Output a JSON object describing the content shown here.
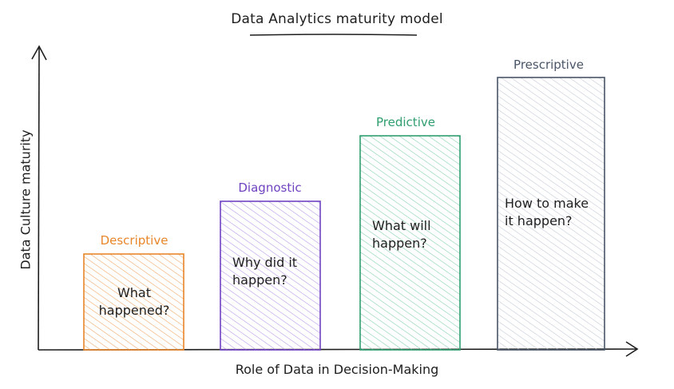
{
  "title": "Data Analytics maturity model",
  "x_axis_label": "Role of Data in Decision-Making",
  "y_axis_label": "Data Culture maturity",
  "stages": [
    {
      "name": "Descriptive",
      "question": "What\nhappened?",
      "color": "#e8862a",
      "fill": "#f6c08f",
      "level": 1
    },
    {
      "name": "Diagnostic",
      "question": "Why did it\nhappen?",
      "color": "#6f42c1",
      "fill": "#c9b3f0",
      "level": 2
    },
    {
      "name": "Predictive",
      "question": "What will\nhappen?",
      "color": "#2f9e6e",
      "fill": "#9fdcbf",
      "level": 3
    },
    {
      "name": "Prescriptive",
      "question": "How to make\nit happen?",
      "color": "#4a5568",
      "fill": "#cfd6df",
      "level": 4
    }
  ]
}
